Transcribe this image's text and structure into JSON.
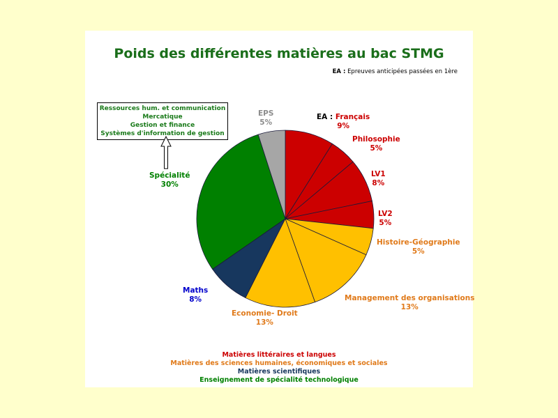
{
  "colors": {
    "litteraires": "#cc0000",
    "sciences_humaines": "#ffc000",
    "sciences_humaines_text": "#e07a1a",
    "scientifiques": "#17375e",
    "scientifiques_label": "#0000cc",
    "specialite": "#008000",
    "eps": "#a6a6a6",
    "title": "#1a6e1a"
  },
  "note": {
    "prefix": "EA :",
    "text": "Epreuves anticipées passées en 1ère"
  },
  "specialite_box": {
    "lines": [
      "Ressources hum. et communication",
      "Mercatique",
      "Gestion et finance",
      "Systèmes d'information de gestion"
    ]
  },
  "chart_data": {
    "type": "pie",
    "title": "Poids des différentes matières au bac STMG",
    "unit": "%",
    "slices": [
      {
        "label": "Français",
        "prefix": "EA :",
        "value": 9,
        "group": "litteraires"
      },
      {
        "label": "Philosophie",
        "value": 5,
        "group": "litteraires"
      },
      {
        "label": "LV1",
        "value": 8,
        "group": "litteraires"
      },
      {
        "label": "LV2",
        "value": 5,
        "group": "litteraires"
      },
      {
        "label": "Histoire-Géographie",
        "value": 5,
        "group": "sciences_humaines"
      },
      {
        "label": "Management des organisations",
        "value": 13,
        "group": "sciences_humaines"
      },
      {
        "label": "Economie- Droit",
        "value": 13,
        "group": "sciences_humaines"
      },
      {
        "label": "Maths",
        "value": 8,
        "group": "scientifiques"
      },
      {
        "label": "Spécialité",
        "value": 30,
        "group": "specialite"
      },
      {
        "label": "EPS",
        "value": 5,
        "group": "eps"
      }
    ],
    "legend": [
      {
        "label": "Matières littéraires et langues",
        "group": "litteraires"
      },
      {
        "label": "Matières des sciences humaines, économiques et sociales",
        "group": "sciences_humaines"
      },
      {
        "label": "Matières scientifiques",
        "group": "scientifiques"
      },
      {
        "label": "Enseignement de spécialité technologique",
        "group": "specialite"
      }
    ]
  }
}
